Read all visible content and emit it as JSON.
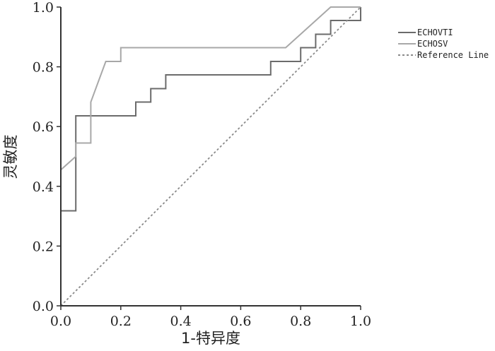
{
  "chart_data": {
    "type": "line",
    "title": "",
    "xlabel": "1-特异度",
    "ylabel": "灵敏度",
    "xlim": [
      0,
      1
    ],
    "ylim": [
      0,
      1
    ],
    "x_ticks": [
      "0.0",
      "0.2",
      "0.4",
      "0.6",
      "0.8",
      "1.0"
    ],
    "y_ticks": [
      "0.0",
      "0.2",
      "0.4",
      "0.6",
      "0.8",
      "1.0"
    ],
    "grid": false,
    "legend_position": "right",
    "series": [
      {
        "name": "ECHOVTI",
        "color": "#6b6b6b",
        "style": "solid",
        "x": [
          0,
          0,
          0.05,
          0.05,
          0.25,
          0.25,
          0.3,
          0.3,
          0.35,
          0.35,
          0.7,
          0.7,
          0.8,
          0.8,
          0.85,
          0.85,
          0.9,
          0.9,
          1.0,
          1.0
        ],
        "y": [
          0,
          0.318,
          0.318,
          0.636,
          0.636,
          0.682,
          0.682,
          0.727,
          0.727,
          0.773,
          0.773,
          0.818,
          0.818,
          0.864,
          0.864,
          0.909,
          0.909,
          0.955,
          0.955,
          1.0
        ]
      },
      {
        "name": "ECHOSV",
        "color": "#a8a8a8",
        "style": "solid",
        "x": [
          0,
          0,
          0.05,
          0.05,
          0.1,
          0.1,
          0.15,
          0.2,
          0.2,
          0.75,
          0.9,
          1.0
        ],
        "y": [
          0,
          0.455,
          0.5,
          0.545,
          0.545,
          0.682,
          0.818,
          0.818,
          0.864,
          0.864,
          1.0,
          1.0
        ]
      },
      {
        "name": "Reference Line",
        "color": "#8a8a8a",
        "style": "dotted",
        "x": [
          0,
          1
        ],
        "y": [
          0,
          1
        ]
      }
    ]
  }
}
